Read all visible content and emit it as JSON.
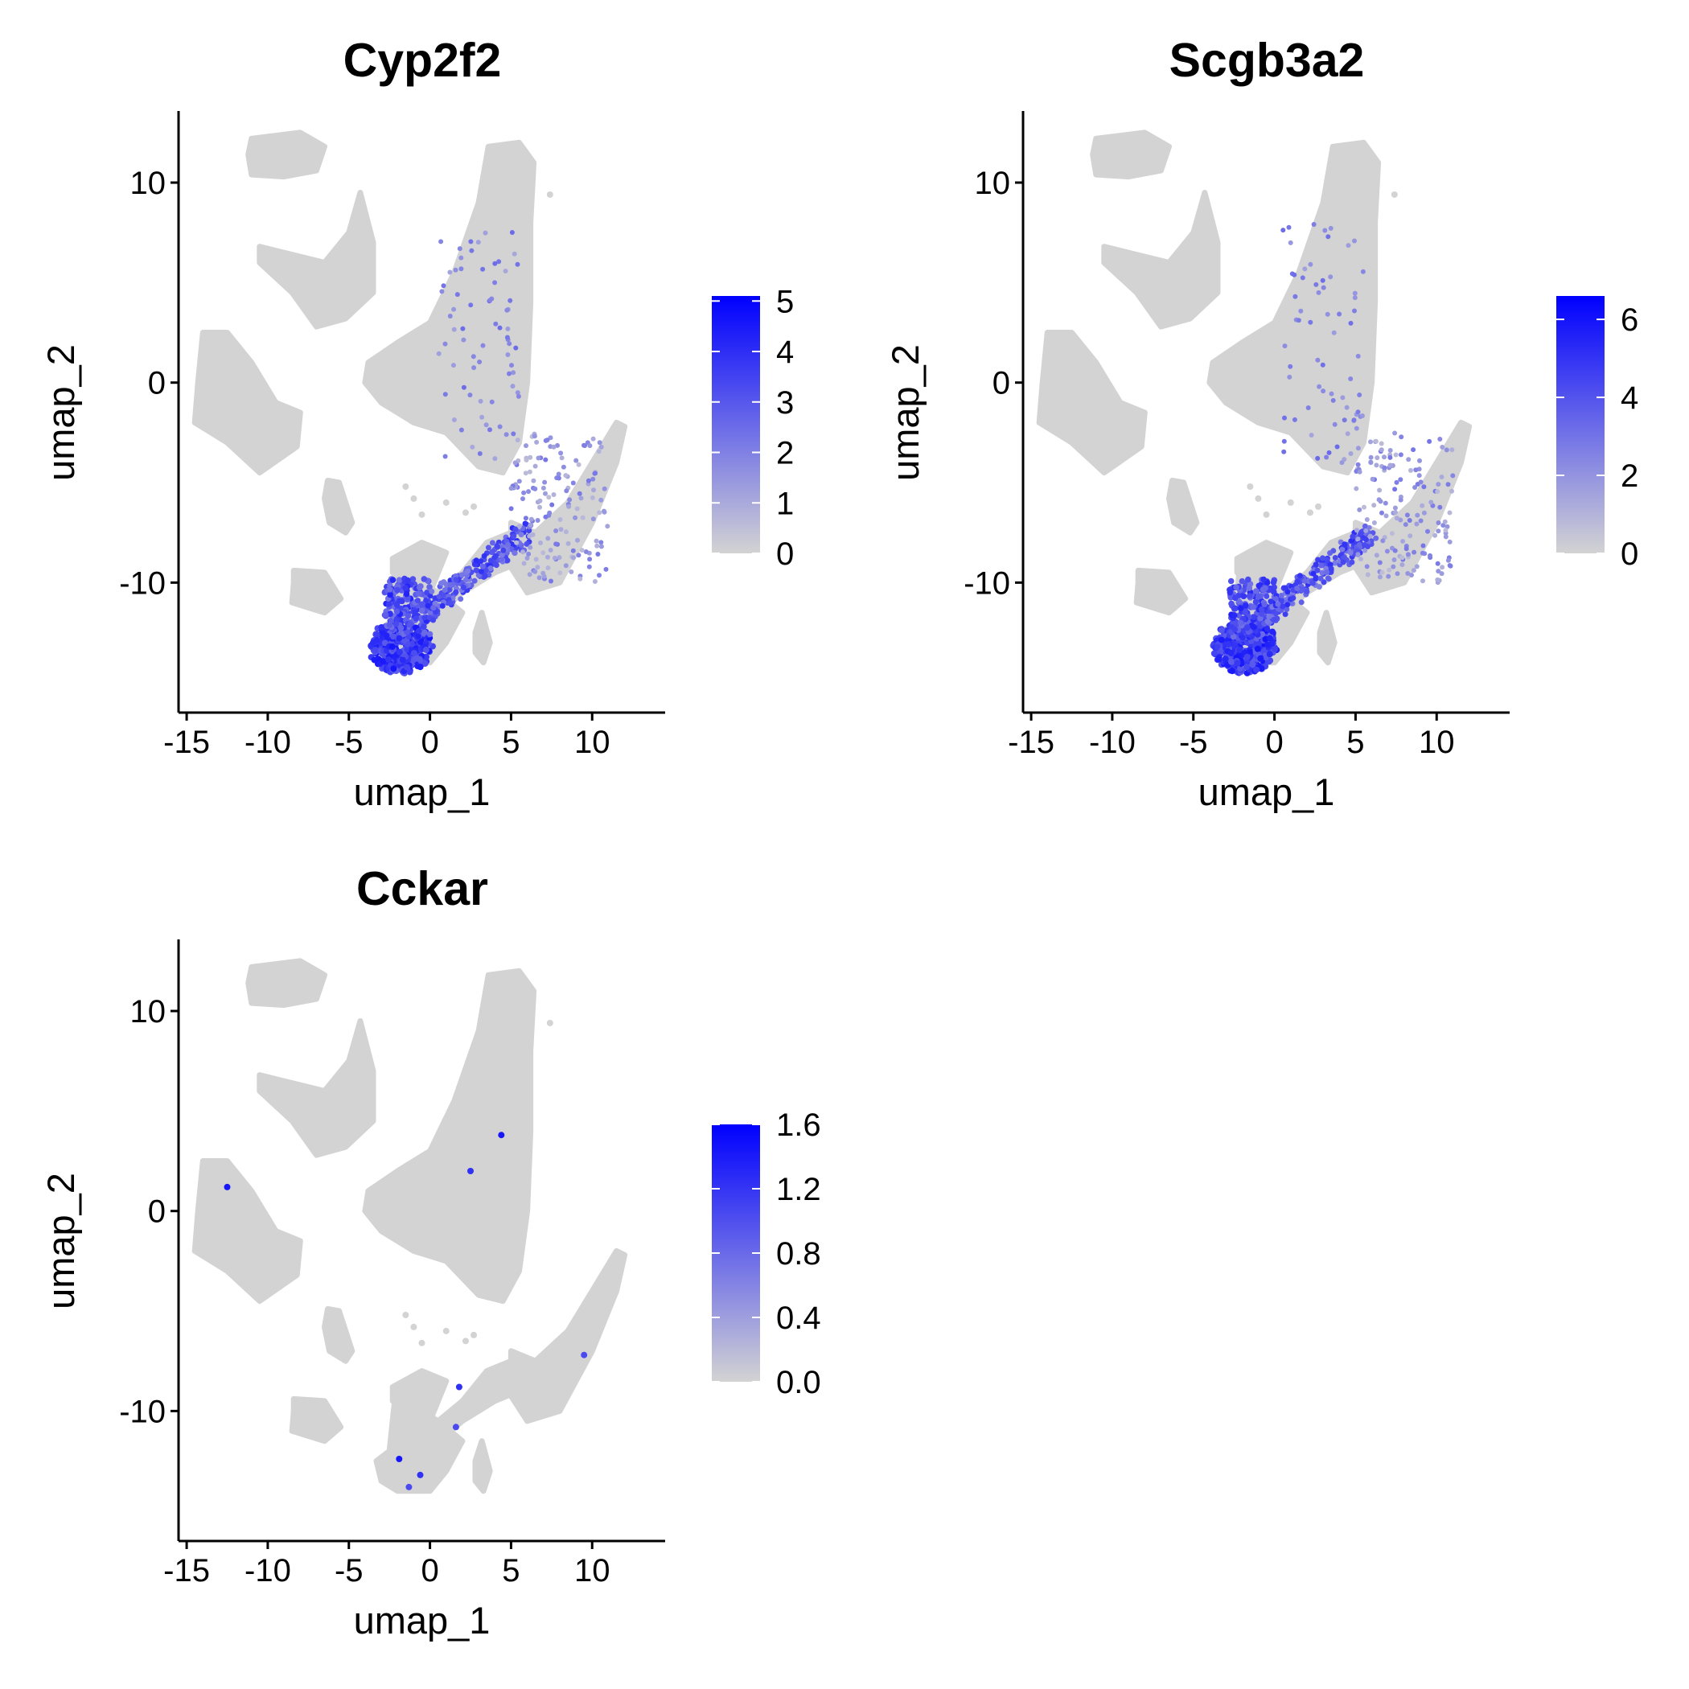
{
  "background": "#FFFFFF",
  "colors": {
    "low": "#D3D3D3",
    "high": "#0000FF",
    "axis": "#000000"
  },
  "chart_data": [
    {
      "type": "scatter",
      "title": "Cyp2f2",
      "xlabel": "umap_1",
      "ylabel": "umap_2",
      "xlim": [
        -15.5,
        14.5
      ],
      "ylim": [
        -16.5,
        13.5
      ],
      "xticks": [
        -15,
        -10,
        -5,
        0,
        5,
        10
      ],
      "xtick_labels": [
        "-15",
        "-10",
        "-5",
        "0",
        "5",
        "10"
      ],
      "yticks": [
        10,
        0,
        -10
      ],
      "ytick_labels": [
        "10",
        "0",
        "-10"
      ],
      "color_scale": {
        "min": 0,
        "max": 5.1,
        "ticks": [
          5,
          4,
          3,
          2,
          1,
          0
        ],
        "tick_labels": [
          "5",
          "4",
          "3",
          "2",
          "1",
          "0"
        ],
        "low": "#D3D3D3",
        "high": "#0000FF"
      },
      "expression": "high",
      "grid": false,
      "legend_position": "right"
    },
    {
      "type": "scatter",
      "title": "Scgb3a2",
      "xlabel": "umap_1",
      "ylabel": "umap_2",
      "xlim": [
        -15.5,
        14.5
      ],
      "ylim": [
        -16.5,
        13.5
      ],
      "xticks": [
        -15,
        -10,
        -5,
        0,
        5,
        10
      ],
      "xtick_labels": [
        "-15",
        "-10",
        "-5",
        "0",
        "5",
        "10"
      ],
      "yticks": [
        10,
        0,
        -10
      ],
      "ytick_labels": [
        "10",
        "0",
        "-10"
      ],
      "color_scale": {
        "min": 0,
        "max": 6.6,
        "ticks": [
          6,
          4,
          2,
          0
        ],
        "tick_labels": [
          "6",
          "4",
          "2",
          "0"
        ],
        "low": "#D3D3D3",
        "high": "#0000FF"
      },
      "expression": "high",
      "grid": false,
      "legend_position": "right"
    },
    {
      "type": "scatter",
      "title": "Cckar",
      "xlabel": "umap_1",
      "ylabel": "umap_2",
      "xlim": [
        -15.5,
        14.5
      ],
      "ylim": [
        -16.5,
        13.5
      ],
      "xticks": [
        -15,
        -10,
        -5,
        0,
        5,
        10
      ],
      "xtick_labels": [
        "-15",
        "-10",
        "-5",
        "0",
        "5",
        "10"
      ],
      "yticks": [
        10,
        0,
        -10
      ],
      "ytick_labels": [
        "10",
        "0",
        "-10"
      ],
      "color_scale": {
        "min": 0,
        "max": 1.6,
        "ticks": [
          1.6,
          1.2,
          0.8,
          0.4,
          0.0
        ],
        "tick_labels": [
          "1.6",
          "1.2",
          "0.8",
          "0.4",
          "0.0"
        ],
        "low": "#D3D3D3",
        "high": "#0000FF"
      },
      "expression": "sparse",
      "grid": false,
      "legend_position": "right"
    }
  ]
}
